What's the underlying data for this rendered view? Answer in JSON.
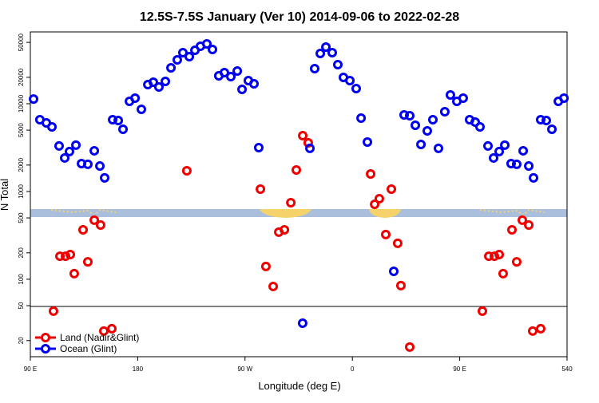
{
  "chart_data": {
    "type": "scatter",
    "title": "12.5S-7.5S January (Ver 10)   2014-09-06 to 2022-02-28",
    "x_label": "Longitude (deg E)",
    "y_label": "N Total",
    "log_y": true,
    "legend": "lower left",
    "xlim": [
      90,
      540
    ],
    "ylim": [
      13.1,
      65800
    ],
    "xticks": [
      {
        "value": 90,
        "label": "90 E"
      },
      180,
      {
        "value": 270,
        "label": "90 W"
      },
      {
        "value": 360,
        "label": "0"
      },
      {
        "value": 450,
        "label": "90 E"
      },
      540
    ],
    "yticks": [
      20,
      50,
      100,
      200,
      500,
      1000,
      2000,
      5000,
      10000,
      20000,
      50000
    ],
    "series": [
      {
        "name": "Land (Nadir&Glint)",
        "color": "#ee0000",
        "x": [
          109.4,
          114.8,
          119.5,
          123.5,
          126.8,
          134.2,
          138.2,
          143.6,
          148.9,
          151.6,
          158.3,
          221.2,
          282.9,
          287.5,
          293.6,
          298.3,
          303.0,
          308.4,
          313.0,
          318.4,
          323.0,
          375.3,
          378.7,
          382.6,
          388.0,
          392.7,
          398.0,
          400.7,
          408.1,
          469.0,
          474.4,
          479.1,
          483.1,
          486.4,
          493.8,
          497.8,
          502.5,
          507.9,
          511.2,
          517.9
        ],
        "values": [
          43.3,
          183,
          183,
          191,
          116,
          366,
          158,
          471,
          415,
          25.7,
          27.3,
          1722,
          1065,
          140,
          82.8,
          344,
          366,
          746,
          1760,
          4330,
          3585,
          1585,
          715,
          828,
          323,
          1065,
          257,
          84.6,
          16.9,
          43.3,
          183,
          183,
          191,
          116,
          366,
          158,
          471,
          415,
          25.7,
          27.3
        ]
      },
      {
        "name": "Ocean (Glint)",
        "color": "#0000ee",
        "x": [
          92.7,
          98.0,
          103.4,
          108.1,
          114.1,
          118.8,
          122.8,
          128.2,
          132.9,
          138.2,
          143.6,
          148.3,
          152.3,
          159.0,
          163.7,
          167.7,
          173.1,
          177.8,
          183.1,
          188.5,
          193.1,
          197.8,
          203.2,
          207.9,
          213.2,
          217.9,
          223.3,
          228.0,
          232.6,
          238.0,
          242.7,
          248.0,
          252.7,
          258.1,
          263.5,
          267.5,
          272.8,
          277.5,
          281.5,
          318.3,
          324.4,
          328.4,
          333.1,
          337.8,
          343.1,
          347.8,
          352.5,
          357.9,
          363.2,
          367.3,
          372.6,
          394.7,
          403.4,
          408.1,
          412.8,
          417.5,
          422.8,
          427.5,
          432.2,
          437.5,
          442.2,
          447.6,
          452.9,
          458.3,
          463.0,
          467.0,
          473.7,
          478.4,
          483.1,
          487.8,
          493.1,
          497.8,
          503.2,
          507.9,
          511.9,
          517.9,
          522.6,
          527.3,
          532.7,
          537.4
        ],
        "values": [
          11300,
          6580,
          6050,
          5450,
          3300,
          2410,
          2850,
          3370,
          2080,
          2040,
          2910,
          1950,
          1430,
          6580,
          6440,
          5120,
          10650,
          11570,
          8640,
          16530,
          17600,
          15520,
          17970,
          25650,
          31600,
          38200,
          34400,
          40650,
          45140,
          48070,
          41500,
          20800,
          22620,
          20380,
          23590,
          14570,
          18350,
          16880,
          3160,
          31.6,
          3100,
          25120,
          37400,
          44200,
          38200,
          27880,
          19950,
          18350,
          14880,
          6860,
          3660,
          123,
          7460,
          7310,
          5680,
          3440,
          4910,
          6580,
          3100,
          8110,
          12590,
          10650,
          11570,
          6580,
          6180,
          5450,
          3300,
          2410,
          2850,
          3370,
          2080,
          2040,
          2910,
          1950,
          1430,
          6580,
          6440,
          5120,
          10650,
          11570
        ]
      }
    ]
  }
}
